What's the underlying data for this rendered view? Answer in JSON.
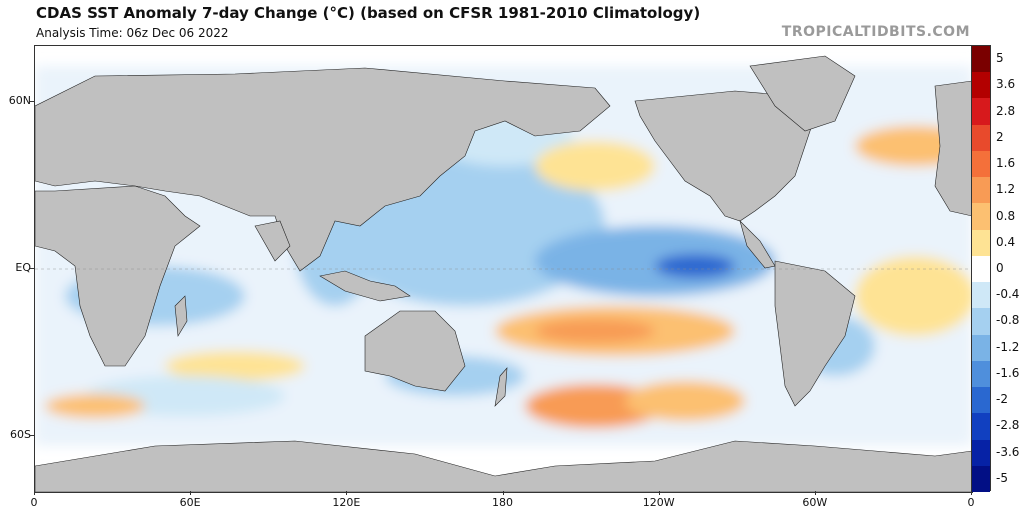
{
  "header": {
    "title": "CDAS SST Anomaly 7-day Change (°C) (based on CFSR 1981-2010 Climatology)",
    "subtitle": "Analysis Time: 06z Dec 06 2022",
    "brand": "TROPICALTIDBITS.COM"
  },
  "map": {
    "lon_range": [
      0,
      360
    ],
    "lat_range": [
      -80,
      80
    ],
    "land_color": "#c0c0c0",
    "lat_labels": [
      {
        "lat": 60,
        "label": "60N"
      },
      {
        "lat": 0,
        "label": "EQ"
      },
      {
        "lat": -60,
        "label": "60S"
      }
    ],
    "lon_labels": [
      {
        "lon": 0,
        "label": "0"
      },
      {
        "lon": 60,
        "label": "60E"
      },
      {
        "lon": 120,
        "label": "120E"
      },
      {
        "lon": 180,
        "label": "180"
      },
      {
        "lon": 240,
        "label": "120W"
      },
      {
        "lon": 300,
        "label": "60W"
      },
      {
        "lon": 360,
        "label": "0"
      }
    ]
  },
  "colorbar": {
    "labels": [
      "5",
      "3.6",
      "2.8",
      "2",
      "1.6",
      "1.2",
      "0.8",
      "0.4",
      "0",
      "-0.4",
      "-0.8",
      "-1.2",
      "-1.6",
      "-2",
      "-2.8",
      "-3.6",
      "-5"
    ],
    "colors": [
      "#7a0000",
      "#b30000",
      "#d7191c",
      "#e84a2c",
      "#f4703a",
      "#f89b55",
      "#fcc071",
      "#fee394",
      "#ffffff",
      "#cfe8f7",
      "#a5d0f0",
      "#7ab3e6",
      "#4f8fdc",
      "#2a68d0",
      "#1140c0",
      "#0622a6",
      "#020f85"
    ]
  }
}
